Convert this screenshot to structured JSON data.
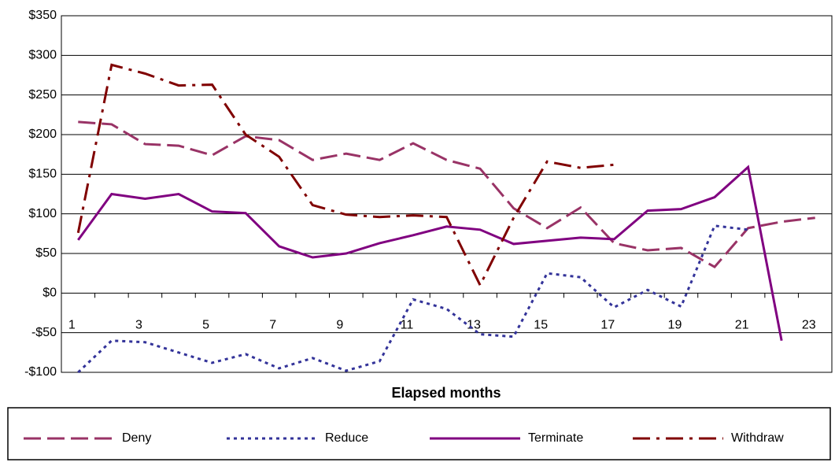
{
  "chart_data": {
    "type": "line",
    "x_label": "Elapsed months",
    "categories": [
      "1",
      null,
      "3",
      null,
      "5",
      null,
      "7",
      null,
      "9",
      null,
      "11",
      null,
      "13",
      null,
      "15",
      null,
      "17",
      null,
      "19",
      null,
      "21",
      null,
      "23"
    ],
    "series": [
      {
        "name": "Deny",
        "color": "#993366",
        "dash": "22,8",
        "values": [
          216,
          213,
          188,
          186,
          174,
          198,
          193,
          168,
          176,
          168,
          189,
          168,
          157,
          107,
          82,
          108,
          63,
          54,
          57,
          33,
          82,
          90,
          95
        ]
      },
      {
        "name": "Reduce",
        "color": "#333399",
        "dash": "4,5",
        "values": [
          -100,
          -60,
          -62,
          -75,
          -88,
          -77,
          -95,
          -82,
          -98,
          -86,
          -8,
          -20,
          -52,
          -55,
          25,
          20,
          -18,
          4,
          -17,
          85,
          80,
          null,
          null
        ]
      },
      {
        "name": "Terminate",
        "color": "#800080",
        "dash": "none",
        "values": [
          67,
          125,
          119,
          125,
          103,
          101,
          59,
          45,
          50,
          63,
          73,
          84,
          80,
          62,
          66,
          70,
          68,
          104,
          106,
          121,
          159,
          -60,
          null
        ]
      },
      {
        "name": "Withdraw",
        "color": "#800000",
        "dash": "22,8,4,8",
        "values": [
          76,
          288,
          277,
          262,
          263,
          200,
          172,
          111,
          99,
          96,
          98,
          96,
          10,
          95,
          166,
          158,
          162,
          null,
          null,
          null,
          null,
          null,
          null
        ]
      }
    ],
    "ylim": [
      -100,
      350
    ],
    "yticks": [
      {
        "value": -100,
        "label": "-$100"
      },
      {
        "value": -50,
        "label": "-$50"
      },
      {
        "value": 0,
        "label": "$0"
      },
      {
        "value": 50,
        "label": "$50"
      },
      {
        "value": 100,
        "label": "$100"
      },
      {
        "value": 150,
        "label": "$150"
      },
      {
        "value": 200,
        "label": "$200"
      },
      {
        "value": 250,
        "label": "$250"
      },
      {
        "value": 300,
        "label": "$300"
      },
      {
        "value": 350,
        "label": "$350"
      }
    ],
    "grid": true
  }
}
